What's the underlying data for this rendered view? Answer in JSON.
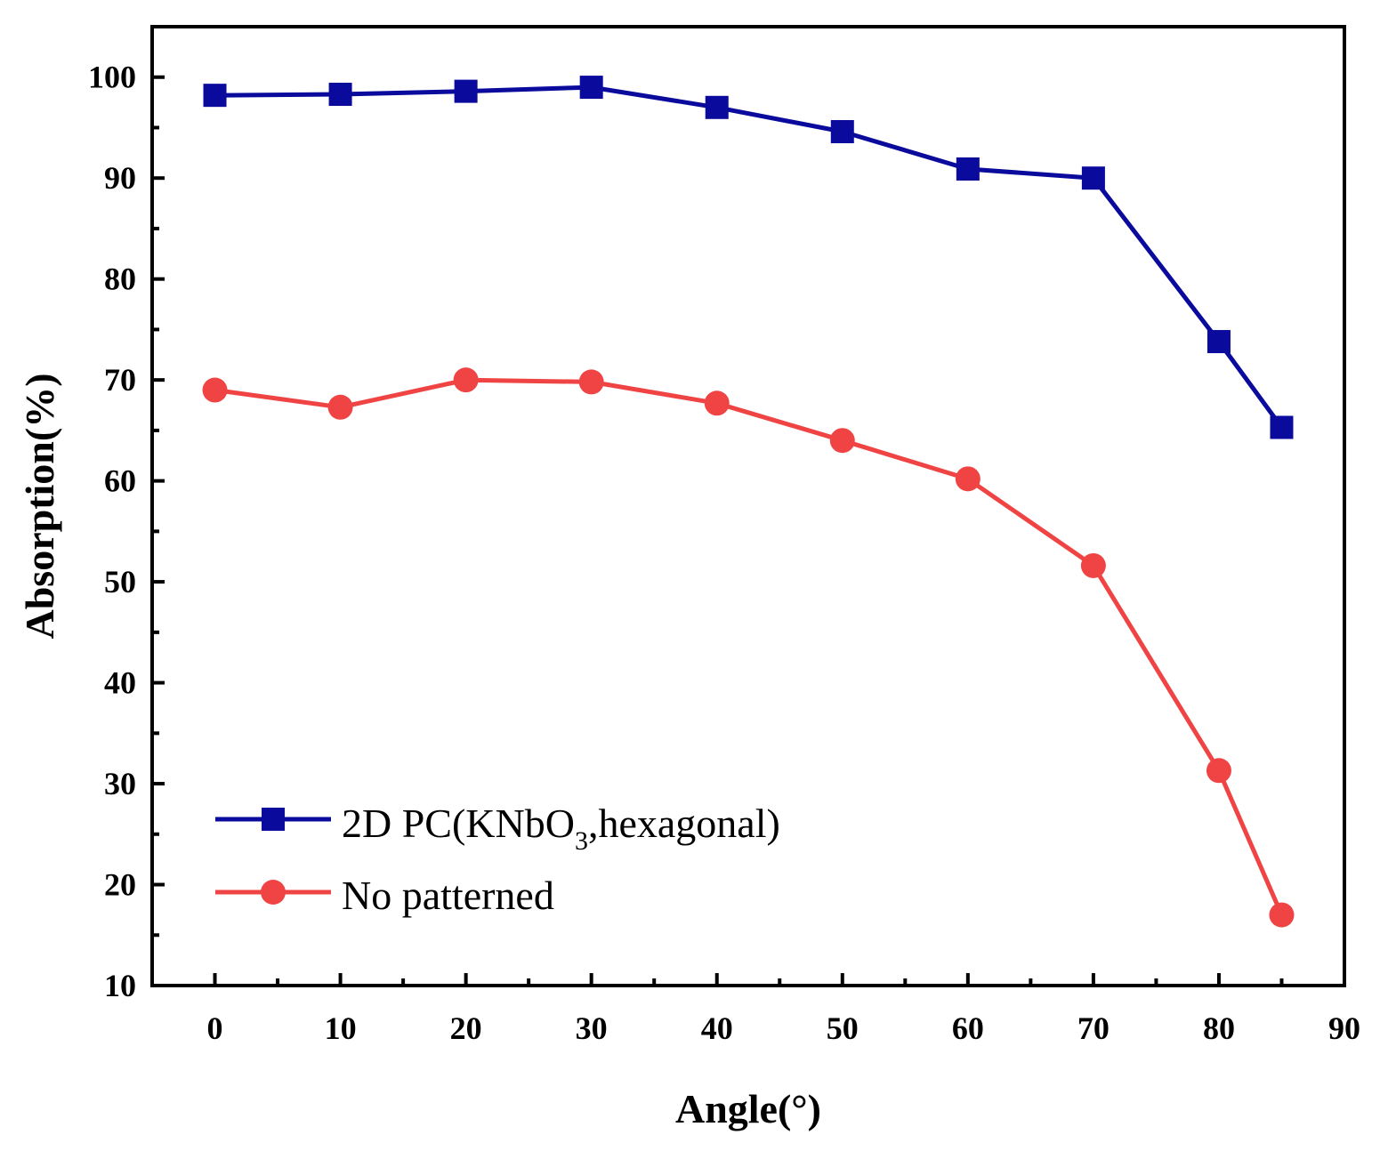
{
  "chart_data": {
    "type": "line",
    "xlabel": "Angle(°)",
    "ylabel": "Absorption(%)",
    "xlim": [
      -5,
      90
    ],
    "ylim": [
      10,
      105
    ],
    "xticks": [
      "0",
      "10",
      "20",
      "30",
      "40",
      "50",
      "60",
      "70",
      "80",
      "90"
    ],
    "yticks": [
      "10",
      "20",
      "30",
      "40",
      "50",
      "60",
      "70",
      "80",
      "90",
      "100"
    ],
    "x": [
      0,
      10,
      20,
      30,
      40,
      50,
      60,
      70,
      80,
      85
    ],
    "grid": false,
    "legend_position": "bottom-left",
    "series": [
      {
        "name": "2D PC(KNbO3,hexagonal)",
        "legend_main": "2D PC(KNbO",
        "legend_sub": "3",
        "legend_tail": ",hexagonal)",
        "marker": "square",
        "color": "#0a0a9c",
        "values": [
          98.2,
          98.3,
          98.6,
          99.0,
          97.0,
          94.6,
          90.9,
          90.0,
          73.8,
          65.3
        ]
      },
      {
        "name": "No patterned",
        "marker": "circle",
        "color": "#f04444",
        "values": [
          69.0,
          67.3,
          70.0,
          69.8,
          67.7,
          64.0,
          60.2,
          51.6,
          31.3,
          17.0
        ]
      }
    ]
  }
}
